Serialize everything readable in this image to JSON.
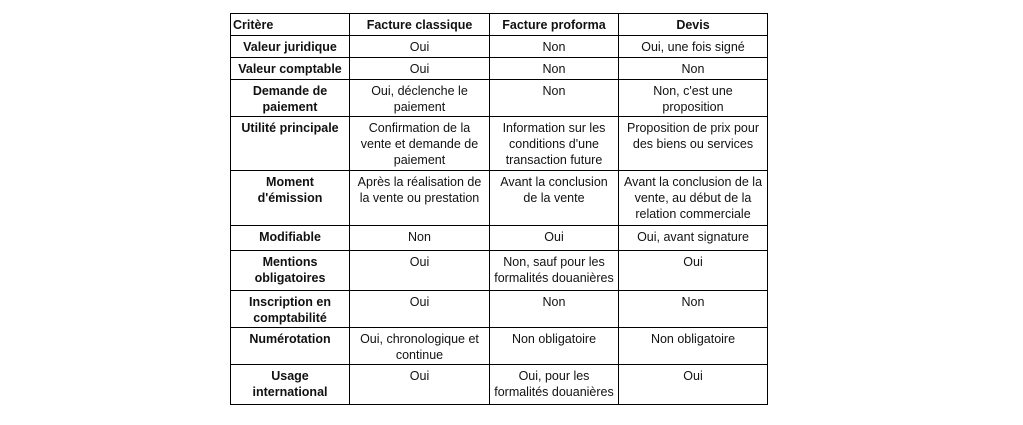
{
  "table": {
    "headers": [
      "Critère",
      "Facture classique",
      "Facture proforma",
      "Devis"
    ],
    "rows": [
      [
        "Valeur juridique",
        "Oui",
        "Non",
        "Oui, une fois signé"
      ],
      [
        "Valeur comptable",
        "Oui",
        "Non",
        "Non"
      ],
      [
        "Demande de paiement",
        "Oui, déclenche le paiement",
        "Non",
        "Non, c'est une proposition"
      ],
      [
        "Utilité principale",
        "Confirmation de la vente et demande de paiement",
        "Information sur les conditions d'une transaction future",
        "Proposition de prix pour des biens ou services"
      ],
      [
        "Moment d'émission",
        "Après la réalisation de la vente ou prestation",
        "Avant la conclusion de la vente",
        "Avant la conclusion de la vente, au début de la relation commerciale"
      ],
      [
        "Modifiable",
        "Non",
        "Oui",
        "Oui, avant signature"
      ],
      [
        "Mentions obligatoires",
        "Oui",
        "Non, sauf pour les formalités douanières",
        "Oui"
      ],
      [
        "Inscription en comptabilité",
        "Oui",
        "Non",
        "Non"
      ],
      [
        "Numérotation",
        "Oui, chronologique et continue",
        "Non obligatoire",
        "Non obligatoire"
      ],
      [
        "Usage international",
        "Oui",
        "Oui, pour les formalités douanières",
        "Oui"
      ]
    ]
  }
}
